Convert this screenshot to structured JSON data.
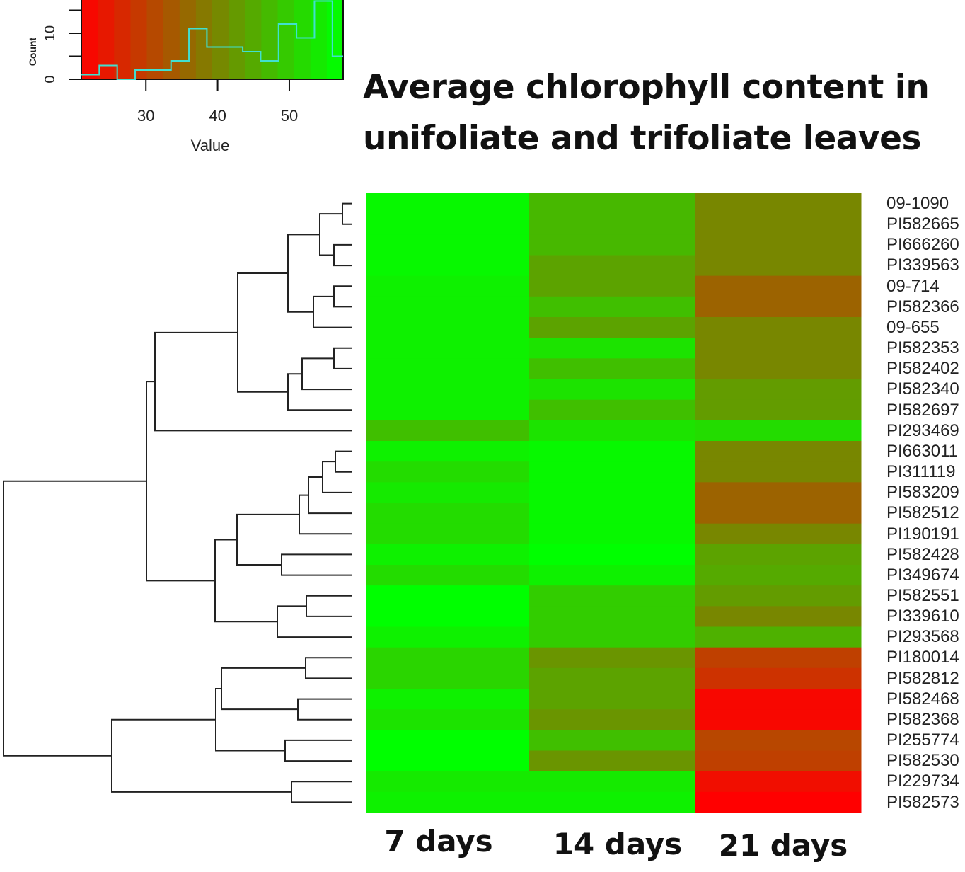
{
  "chart_data": {
    "type": "heatmap",
    "title": "Average chlorophyll content in unifoliate and trifoliate leaves",
    "title_lines": [
      "Average chlorophyll content in",
      "unifoliate and trifoliate leaves"
    ],
    "columns": [
      "7 days",
      "14 days",
      "21 days"
    ],
    "rows": [
      "09-1090",
      "PI582665",
      "PI666260",
      "PI339563",
      "09-714",
      "PI582366",
      "09-655",
      "PI582353",
      "PI582402",
      "PI582340",
      "PI582697",
      "PI293469",
      "PI663011",
      "PI311119",
      "PI583209",
      "PI582512",
      "PI190191",
      "PI582428",
      "PI349674",
      "PI582551",
      "PI339610",
      "PI293568",
      "PI180014",
      "PI582812",
      "PI582468",
      "PI582368",
      "PI255774",
      "PI582530",
      "PI229734",
      "PI582573"
    ],
    "values": [
      [
        56,
        47,
        40
      ],
      [
        56,
        47,
        40
      ],
      [
        56,
        47,
        40
      ],
      [
        56,
        44,
        40
      ],
      [
        55,
        44,
        35
      ],
      [
        55,
        48,
        35
      ],
      [
        55,
        44,
        40
      ],
      [
        55,
        53,
        40
      ],
      [
        55,
        48,
        40
      ],
      [
        55,
        53,
        43
      ],
      [
        55,
        48,
        43
      ],
      [
        48,
        53,
        52
      ],
      [
        55,
        56,
        40
      ],
      [
        52,
        56,
        40
      ],
      [
        54,
        56,
        35
      ],
      [
        52,
        56,
        35
      ],
      [
        52,
        56,
        40
      ],
      [
        55,
        57,
        44
      ],
      [
        52,
        55,
        45
      ],
      [
        57,
        50,
        43
      ],
      [
        57,
        50,
        40
      ],
      [
        55,
        50,
        46
      ],
      [
        51,
        42,
        30
      ],
      [
        51,
        44,
        28
      ],
      [
        55,
        44,
        22
      ],
      [
        53,
        42,
        22
      ],
      [
        57,
        48,
        31
      ],
      [
        57,
        42,
        30
      ],
      [
        54,
        54,
        23
      ],
      [
        55,
        55,
        21
      ]
    ],
    "color_scale": {
      "low": "#ff0000",
      "high": "#00ff00",
      "range": [
        21,
        57
      ]
    },
    "color_key": {
      "xlabel": "Value",
      "ylabel": "Count",
      "xticks": [
        30,
        40,
        50
      ],
      "yticks": [
        0,
        10
      ],
      "xlim": [
        21,
        57.5
      ],
      "histogram_color": "#40e0d0",
      "bin_edges": [
        21,
        23.5,
        26,
        28.5,
        31,
        33.5,
        36,
        38.5,
        41,
        43.5,
        46,
        48.5,
        51,
        53.5,
        56,
        58.5
      ],
      "counts": [
        1,
        3,
        0,
        2,
        2,
        4,
        11,
        7,
        7,
        6,
        4,
        12,
        9,
        17,
        5
      ]
    },
    "dendrogram": {
      "merges": [
        [
          -1,
          -2,
          484
        ],
        [
          -3,
          -4,
          472
        ],
        [
          1,
          2,
          452
        ],
        [
          -5,
          -6,
          472
        ],
        [
          4,
          -7,
          443
        ],
        [
          3,
          5,
          407
        ],
        [
          -8,
          -9,
          472
        ],
        [
          7,
          -10,
          427
        ],
        [
          8,
          -11,
          407
        ],
        [
          6,
          9,
          336
        ],
        [
          10,
          -12,
          219
        ],
        [
          -13,
          -14,
          474
        ],
        [
          12,
          -15,
          456
        ],
        [
          13,
          -16,
          436
        ],
        [
          14,
          -17,
          423
        ],
        [
          -18,
          -19,
          398
        ],
        [
          15,
          16,
          335
        ],
        [
          -20,
          -21,
          433
        ],
        [
          18,
          -22,
          392
        ],
        [
          17,
          19,
          304
        ],
        [
          11,
          20,
          207
        ],
        [
          -23,
          -24,
          432
        ],
        [
          -25,
          -26,
          421
        ],
        [
          22,
          23,
          313
        ],
        [
          -27,
          -28,
          403
        ],
        [
          24,
          25,
          305
        ],
        [
          -29,
          -30,
          412
        ],
        [
          26,
          27,
          158
        ],
        [
          21,
          28,
          5
        ]
      ]
    }
  }
}
